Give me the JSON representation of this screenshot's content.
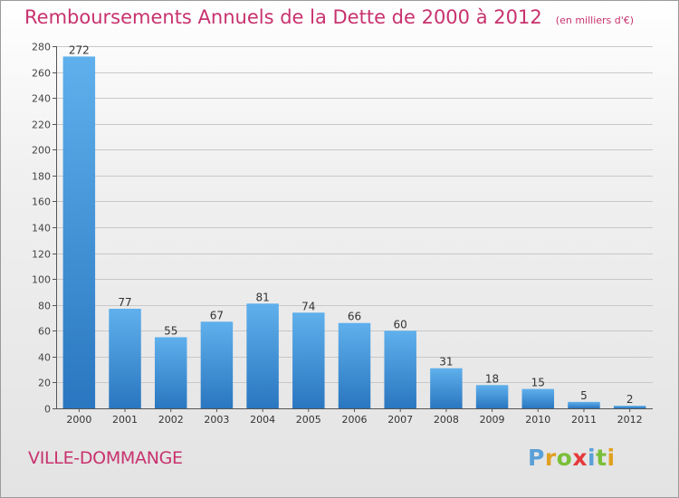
{
  "chart_data": {
    "type": "bar",
    "title": "Remboursements Annuels de la Dette de 2000 à 2012",
    "subtitle": "(en milliers d'€)",
    "categories": [
      "2000",
      "2001",
      "2002",
      "2003",
      "2004",
      "2005",
      "2006",
      "2007",
      "2008",
      "2009",
      "2010",
      "2011",
      "2012"
    ],
    "values": [
      272,
      77,
      55,
      67,
      81,
      74,
      66,
      60,
      31,
      18,
      15,
      5,
      2
    ],
    "ylim": [
      0,
      280
    ],
    "yticks": [
      0,
      20,
      40,
      60,
      80,
      100,
      120,
      140,
      160,
      180,
      200,
      220,
      240,
      260,
      280
    ],
    "xlabel": "",
    "ylabel": "",
    "grid": true,
    "bar_color": "#3d8fd9"
  },
  "footer": {
    "town": "VILLE-DOMMANGE",
    "logo_letters": [
      {
        "ch": "P",
        "color": "#5aa0d8"
      },
      {
        "ch": "r",
        "color": "#e0a020"
      },
      {
        "ch": "o",
        "color": "#7abf3a"
      },
      {
        "ch": "x",
        "color": "#e53a3a"
      },
      {
        "ch": "i",
        "color": "#5aa0d8"
      },
      {
        "ch": "t",
        "color": "#7abf3a"
      },
      {
        "ch": "i",
        "color": "#e0a020"
      }
    ]
  }
}
